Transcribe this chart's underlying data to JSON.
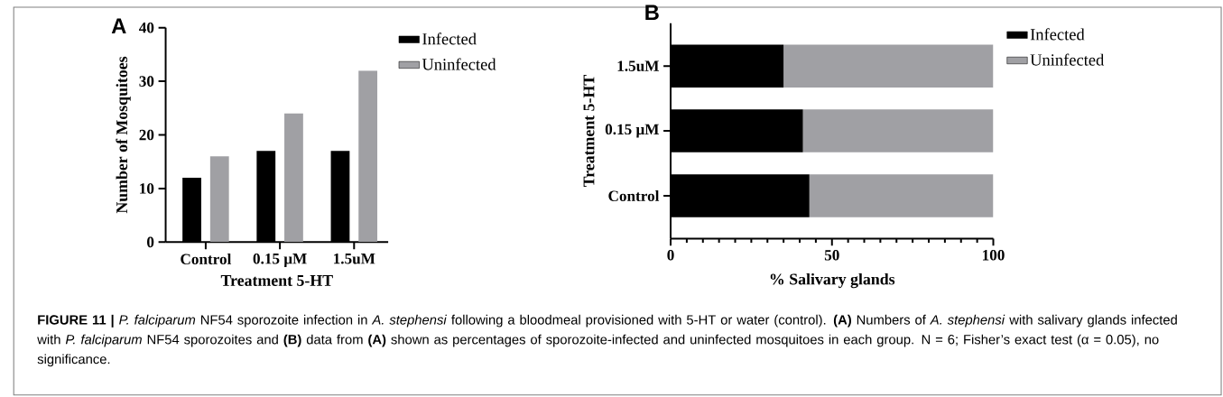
{
  "chart_data": [
    {
      "type": "bar",
      "title": "A",
      "categories": [
        "Control",
        "0.15 μM",
        "1.5uM"
      ],
      "series": [
        {
          "name": "Infected",
          "color": "#000000",
          "values": [
            12,
            17,
            17
          ]
        },
        {
          "name": "Uninfected",
          "color": "#a0a0a4",
          "values": [
            16,
            24,
            32
          ]
        }
      ],
      "xlabel": "Treatment 5-HT",
      "ylabel": "Number of Mosquitoes",
      "ylim": [
        0,
        40
      ],
      "yticks": [
        0,
        10,
        20,
        30,
        40
      ],
      "grid": false,
      "legend": "top right",
      "annotations": [
        "**FIGURE 11 |** *P. falciparum* NF54 sporozoite infection in *A. stephensi* following a bloodmeal provisioned with 5-HT or water (control). **(A)** Numbers of *A. stephensi* with salivary glands infected with *P. falciparum* NF54 sporozoites and **(B)** data from **(A)** shown as percentages of sporozoite-infected and uninfected mosquitoes in each group. N = 6; Fisher’s exact test (α = 0.05), no significance."
      ]
    },
    {
      "type": "bar",
      "title": "B",
      "orientation": "horizontal",
      "stacked": true,
      "categories": [
        "1.5uM",
        "0.15 μM",
        "Control"
      ],
      "series": [
        {
          "name": "Infected",
          "color": "#000000",
          "values": [
            35,
            41,
            43
          ]
        },
        {
          "name": "Uninfected",
          "color": "#a0a0a4",
          "values": [
            65,
            59,
            57
          ]
        }
      ],
      "xlabel": "% Salivary glands",
      "ylabel": "Treatment 5-HT",
      "xlim": [
        0,
        100
      ],
      "xticks": [
        0,
        {
          "value": 5,
          "label": null
        },
        {
          "value": 10,
          "label": null
        },
        {
          "value": 15,
          "label": null
        },
        {
          "value": 20,
          "label": null
        },
        {
          "value": 25,
          "label": null
        },
        {
          "value": 30,
          "label": null
        },
        {
          "value": 35,
          "label": null
        },
        {
          "value": 40,
          "label": null
        },
        {
          "value": 45,
          "label": null
        },
        50,
        {
          "value": 55,
          "label": null
        },
        {
          "value": 60,
          "label": null
        },
        {
          "value": 65,
          "label": null
        },
        {
          "value": 70,
          "label": null
        },
        {
          "value": 75,
          "label": null
        },
        {
          "value": 80,
          "label": null
        },
        {
          "value": 85,
          "label": null
        },
        {
          "value": 90,
          "label": null
        },
        {
          "value": 95,
          "label": null
        },
        100
      ],
      "grid": false,
      "legend": "top right"
    }
  ]
}
